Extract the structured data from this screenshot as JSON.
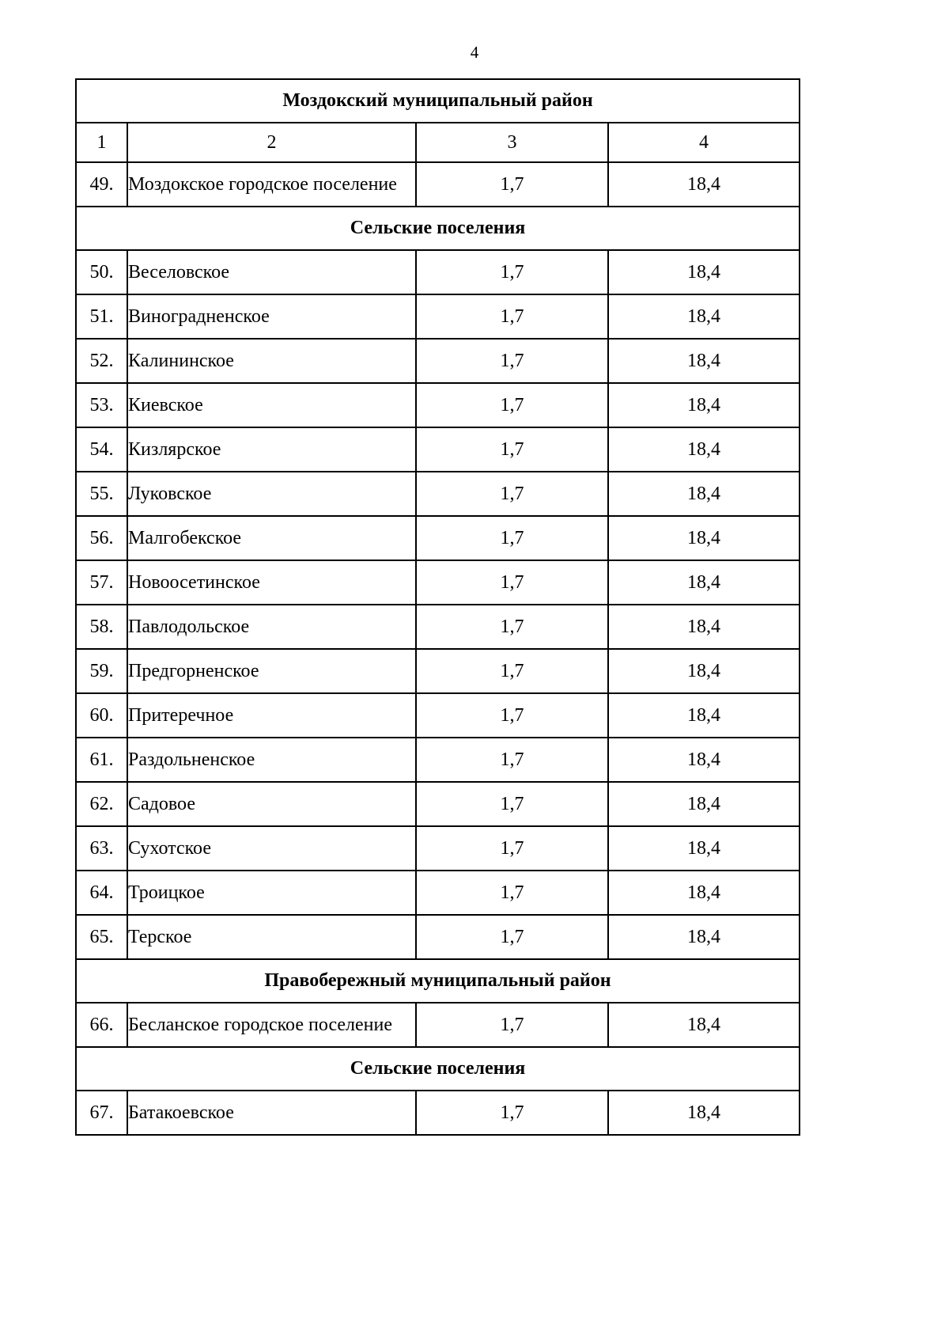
{
  "page": {
    "number": "4"
  },
  "table": {
    "rows": [
      {
        "type": "section",
        "label": "Моздокский муниципальный район"
      },
      {
        "type": "cols",
        "cells": [
          "1",
          "2",
          "3",
          "4"
        ]
      },
      {
        "type": "data",
        "num": "49.",
        "name": "Моздокское городское поселение",
        "v3": "1,7",
        "v4": "18,4"
      },
      {
        "type": "section",
        "label": "Сельские поселения"
      },
      {
        "type": "data",
        "num": "50.",
        "name": "Веселовское",
        "v3": "1,7",
        "v4": "18,4"
      },
      {
        "type": "data",
        "num": "51.",
        "name": "Виноградненское",
        "v3": "1,7",
        "v4": "18,4"
      },
      {
        "type": "data",
        "num": "52.",
        "name": "Калининское",
        "v3": "1,7",
        "v4": "18,4"
      },
      {
        "type": "data",
        "num": "53.",
        "name": "Киевское",
        "v3": "1,7",
        "v4": "18,4"
      },
      {
        "type": "data",
        "num": "54.",
        "name": "Кизлярское",
        "v3": "1,7",
        "v4": "18,4"
      },
      {
        "type": "data",
        "num": "55.",
        "name": "Луковское",
        "v3": "1,7",
        "v4": "18,4"
      },
      {
        "type": "data",
        "num": "56.",
        "name": "Малгобекское",
        "v3": "1,7",
        "v4": "18,4"
      },
      {
        "type": "data",
        "num": "57.",
        "name": "Новоосетинское",
        "v3": "1,7",
        "v4": "18,4"
      },
      {
        "type": "data",
        "num": "58.",
        "name": "Павлодольское",
        "v3": "1,7",
        "v4": "18,4"
      },
      {
        "type": "data",
        "num": "59.",
        "name": "Предгорненское",
        "v3": "1,7",
        "v4": "18,4"
      },
      {
        "type": "data",
        "num": "60.",
        "name": "Притеречное",
        "v3": "1,7",
        "v4": "18,4"
      },
      {
        "type": "data",
        "num": "61.",
        "name": "Раздольненское",
        "v3": "1,7",
        "v4": "18,4"
      },
      {
        "type": "data",
        "num": "62.",
        "name": "Садовое",
        "v3": "1,7",
        "v4": "18,4"
      },
      {
        "type": "data",
        "num": "63.",
        "name": "Сухотское",
        "v3": "1,7",
        "v4": "18,4"
      },
      {
        "type": "data",
        "num": "64.",
        "name": "Троицкое",
        "v3": "1,7",
        "v4": "18,4"
      },
      {
        "type": "data",
        "num": "65.",
        "name": "Терское",
        "v3": "1,7",
        "v4": "18,4"
      },
      {
        "type": "section",
        "label": "Правобережный муниципальный район"
      },
      {
        "type": "data",
        "num": "66.",
        "name": "Бесланское городское поселение",
        "v3": "1,7",
        "v4": "18,4"
      },
      {
        "type": "section",
        "label": "Сельские поселения"
      },
      {
        "type": "data",
        "num": "67.",
        "name": "Батакоевское",
        "v3": "1,7",
        "v4": "18,4"
      }
    ]
  }
}
